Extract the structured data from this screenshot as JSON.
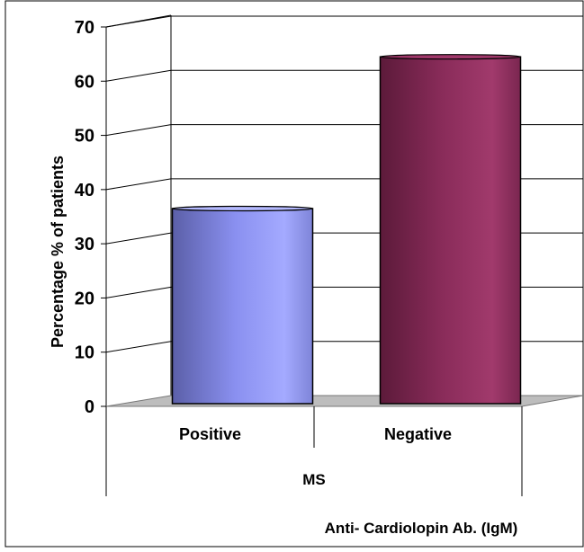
{
  "chart_data": {
    "type": "bar",
    "categories": [
      "Positive",
      "Negative"
    ],
    "values": [
      36,
      64
    ],
    "group_label": "MS",
    "xlabel": "Anti- Cardiolopin Ab. (IgM)",
    "ylabel": "Percentage % of patients",
    "ylim": [
      0,
      70
    ],
    "yticks": [
      "0",
      "10",
      "20",
      "30",
      "40",
      "50",
      "60",
      "70"
    ],
    "grid": true,
    "bar_style": "3d-cylinder",
    "colors": [
      "#9aa0ff",
      "#8e2f5e"
    ]
  }
}
